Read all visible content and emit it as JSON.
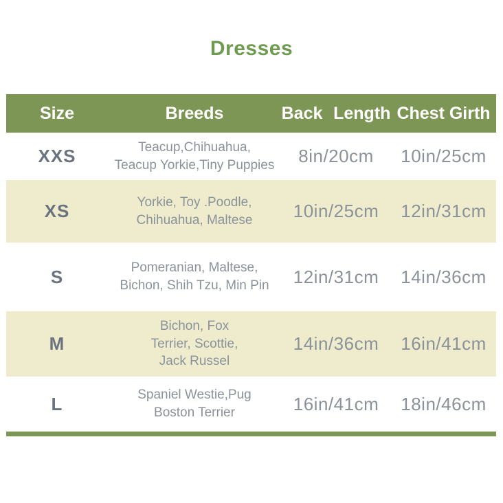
{
  "title": "Dresses",
  "colors": {
    "header_green": "#7d9655",
    "title_green": "#6f9b51",
    "stripe_cream": "#eeeccd",
    "size_text_gray": "#6b747e",
    "body_text_gray": "#8b9299",
    "header_text": "#ffffff",
    "background": "#ffffff"
  },
  "chart_data": {
    "type": "table",
    "title": "Dresses",
    "columns": [
      "Size",
      "Breeds",
      "Back Length",
      "Chest Girth"
    ],
    "rows": [
      {
        "size": "XXS",
        "breeds_lines": [
          "Teacup,Chihuahua,",
          "Teacup Yorkie,Tiny Puppies"
        ],
        "back_length": "8in/20cm",
        "chest_girth": "10in/25cm"
      },
      {
        "size": "XS",
        "breeds_lines": [
          "Yorkie, Toy .Poodle,",
          "Chihuahua, Maltese"
        ],
        "back_length": "10in/25cm",
        "chest_girth": "12in/31cm"
      },
      {
        "size": "S",
        "breeds_lines": [
          "Pomeranian, Maltese,",
          "Bichon, Shih Tzu, Min Pin"
        ],
        "back_length": "12in/31cm",
        "chest_girth": "14in/36cm"
      },
      {
        "size": "M",
        "breeds_lines": [
          "Bichon, Fox",
          "Terrier, Scottie,",
          "Jack Russel"
        ],
        "back_length": "14in/36cm",
        "chest_girth": "16in/41cm"
      },
      {
        "size": "L",
        "breeds_lines": [
          "Spaniel Westie,Pug",
          "Boston Terrier"
        ],
        "back_length": "16in/41cm",
        "chest_girth": "18in/46cm"
      }
    ]
  }
}
